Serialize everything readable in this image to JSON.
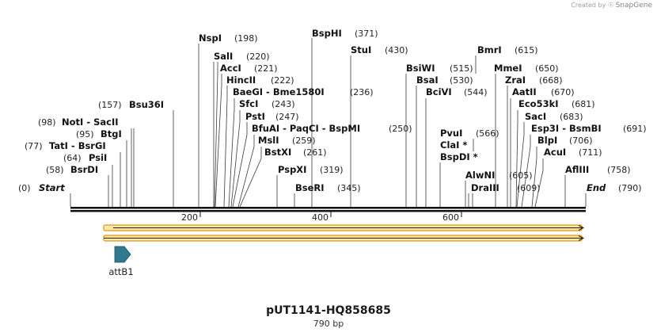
{
  "watermark": {
    "prefix": "Created by",
    "brand": "SnapGene"
  },
  "sequence": {
    "name": "pUT1141-HQ858685",
    "length_label": "790 bp",
    "length": 790
  },
  "ruler": {
    "ticks": [
      200,
      400,
      600
    ]
  },
  "ends": {
    "start": {
      "name": "Start",
      "position": 0
    },
    "end": {
      "name": "End",
      "position": 790
    }
  },
  "enzymes": [
    {
      "name": "NspI",
      "position": 198,
      "side": "right"
    },
    {
      "name": "SalI",
      "position": 220,
      "side": "right"
    },
    {
      "name": "AccI",
      "position": 221,
      "side": "right"
    },
    {
      "name": "HincII",
      "position": 222,
      "side": "right"
    },
    {
      "name": "BaeGI",
      "group": [
        "BaeGI",
        "Bme1580I"
      ],
      "position": 236,
      "side": "right"
    },
    {
      "name": "SfcI",
      "position": 243,
      "side": "right"
    },
    {
      "name": "PstI",
      "position": 247,
      "side": "right"
    },
    {
      "name": "BfuAI",
      "group": [
        "BfuAI",
        "PaqCI",
        "BspMI"
      ],
      "position": 250,
      "side": "right"
    },
    {
      "name": "MslI",
      "position": 259,
      "side": "right"
    },
    {
      "name": "BstXI",
      "position": 261,
      "side": "right"
    },
    {
      "name": "PspXI",
      "position": 319,
      "side": "right"
    },
    {
      "name": "BseRI",
      "position": 345,
      "side": "right"
    },
    {
      "name": "BspHI",
      "position": 371,
      "side": "right"
    },
    {
      "name": "StuI",
      "position": 430,
      "side": "right"
    },
    {
      "name": "BsiWI",
      "position": 515,
      "side": "right"
    },
    {
      "name": "BsaI",
      "position": 530,
      "side": "right"
    },
    {
      "name": "BciVI",
      "position": 544,
      "side": "right"
    },
    {
      "name": "PvuI",
      "position": 566,
      "side": "right"
    },
    {
      "name": "ClaI *",
      "position": null,
      "side": "right"
    },
    {
      "name": "BspDI *",
      "position": null,
      "side": "right"
    },
    {
      "name": "AlwNI",
      "position": 605,
      "side": "right"
    },
    {
      "name": "DraIII",
      "position": 609,
      "side": "right"
    },
    {
      "name": "BmrI",
      "position": 615,
      "side": "right"
    },
    {
      "name": "MmeI",
      "position": 650,
      "side": "right"
    },
    {
      "name": "ZraI",
      "position": 668,
      "side": "right"
    },
    {
      "name": "AatII",
      "position": 670,
      "side": "right"
    },
    {
      "name": "Eco53kI",
      "position": 681,
      "side": "right"
    },
    {
      "name": "SacI",
      "position": 683,
      "side": "right"
    },
    {
      "name": "Esp3I",
      "group": [
        "Esp3I",
        "BsmBI"
      ],
      "position": 691,
      "side": "right"
    },
    {
      "name": "BlpI",
      "position": 706,
      "side": "right"
    },
    {
      "name": "AcuI",
      "position": 711,
      "side": "right"
    },
    {
      "name": "AflIII",
      "position": 758,
      "side": "right"
    },
    {
      "name": "Bsu36I",
      "position": 157,
      "side": "left"
    },
    {
      "name": "NotI",
      "group": [
        "NotI",
        "SacII"
      ],
      "position": 98,
      "side": "left"
    },
    {
      "name": "BtgI",
      "position": 95,
      "side": "left"
    },
    {
      "name": "TatI",
      "group": [
        "TatI",
        "BsrGI"
      ],
      "position": 77,
      "side": "left"
    },
    {
      "name": "PsiI",
      "position": 64,
      "side": "left"
    },
    {
      "name": "BsrDI",
      "position": 58,
      "side": "left"
    }
  ],
  "features": [
    {
      "name": "attB1",
      "type": "arrow"
    }
  ],
  "colors": {
    "ink": "#111111",
    "orf_fill": "#ffe8a8",
    "orf_stroke": "#e8a530",
    "feature": "#2f7a8f"
  }
}
